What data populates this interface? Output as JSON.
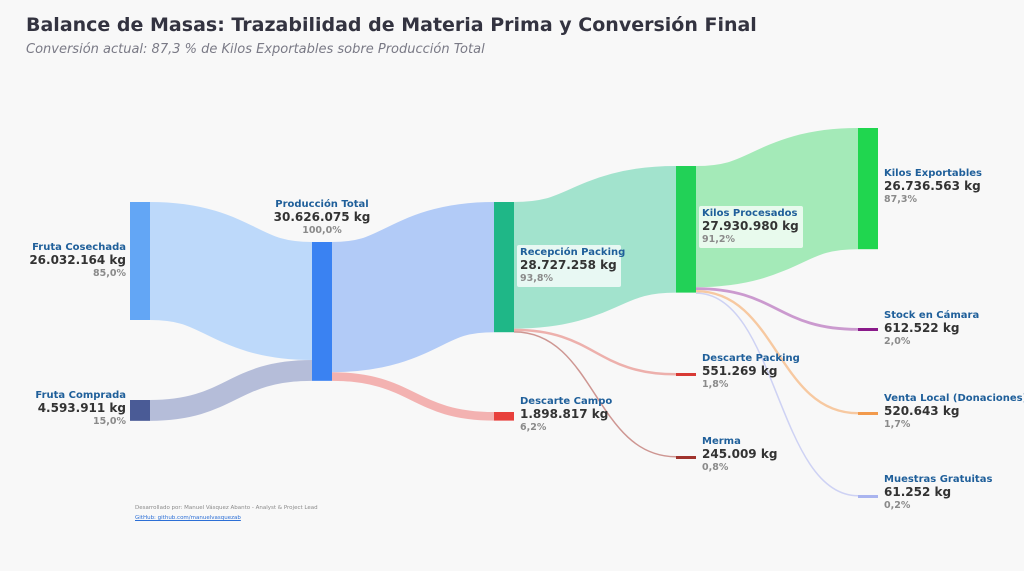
{
  "title": "Balance de Masas: Trazabilidad de Materia Prima y Conversión Final",
  "subtitle": "Conversión actual: 87,3 % de Kilos Exportables sobre Producción Total",
  "credits": {
    "line1": "Desarrollado por: Manuel Vásquez Abanto - Analyst & Project Lead",
    "line2": "GitHub: github.com/manuelvasquezab"
  },
  "chart_data": {
    "type": "sankey",
    "title": "Balance de Masas: Trazabilidad de Materia Prima y Conversión Final",
    "subtitle": "Conversión actual: 87,3 % de Kilos Exportables sobre Producción Total",
    "units": "kg",
    "nodes": [
      {
        "id": "fruta_cosechada",
        "name": "Fruta Cosechada",
        "value_label": "26.032.164 kg",
        "pct_label": "85,0%",
        "value": 26032164,
        "color": "#63a6f5"
      },
      {
        "id": "fruta_comprada",
        "name": "Fruta Comprada",
        "value_label": "4.593.911 kg",
        "pct_label": "15,0%",
        "value": 4593911,
        "color": "#4a5b96"
      },
      {
        "id": "produccion_total",
        "name": "Producción Total",
        "value_label": "30.626.075 kg",
        "pct_label": "100,0%",
        "value": 30626075,
        "color": "#3a82f2"
      },
      {
        "id": "recepcion_packing",
        "name": "Recepción Packing",
        "value_label": "28.727.258 kg",
        "pct_label": "93,8%",
        "value": 28727258,
        "color": "#1fb787"
      },
      {
        "id": "descarte_campo",
        "name": "Descarte Campo",
        "value_label": "1.898.817 kg",
        "pct_label": "6,2%",
        "value": 1898817,
        "color": "#e8403c"
      },
      {
        "id": "kilos_procesados",
        "name": "Kilos Procesados",
        "value_label": "27.930.980 kg",
        "pct_label": "91,2%",
        "value": 27930980,
        "color": "#22d157"
      },
      {
        "id": "descarte_packing",
        "name": "Descarte Packing",
        "value_label": "551.269 kg",
        "pct_label": "1,8%",
        "value": 551269,
        "color": "#d83a35"
      },
      {
        "id": "merma",
        "name": "Merma",
        "value_label": "245.009 kg",
        "pct_label": "0,8%",
        "value": 245009,
        "color": "#a0332d"
      },
      {
        "id": "kilos_exportables",
        "name": "Kilos Exportables",
        "value_label": "26.736.563 kg",
        "pct_label": "87,3%",
        "value": 26736563,
        "color": "#20d64f"
      },
      {
        "id": "stock_camara",
        "name": "Stock en Cámara",
        "value_label": "612.522 kg",
        "pct_label": "2,0%",
        "value": 612522,
        "color": "#8a1a8a"
      },
      {
        "id": "venta_local",
        "name": "Venta Local (Donaciones)",
        "value_label": "520.643 kg",
        "pct_label": "1,7%",
        "value": 520643,
        "color": "#f29a4c"
      },
      {
        "id": "muestras_gratuitas",
        "name": "Muestras Gratuitas",
        "value_label": "61.252 kg",
        "pct_label": "0,2%",
        "value": 61252,
        "color": "#a9b4ef"
      }
    ],
    "links": [
      {
        "source": "fruta_cosechada",
        "target": "produccion_total",
        "value": 26032164,
        "color": "#b3d3fa"
      },
      {
        "source": "fruta_comprada",
        "target": "produccion_total",
        "value": 4593911,
        "color": "#a9b3d3"
      },
      {
        "source": "produccion_total",
        "target": "recepcion_packing",
        "value": 28727258,
        "color": "#a6c3f7"
      },
      {
        "source": "produccion_total",
        "target": "descarte_campo",
        "value": 1898817,
        "color": "#f2a6a4"
      },
      {
        "source": "recepcion_packing",
        "target": "kilos_procesados",
        "value": 27930980,
        "color": "#93dfc5"
      },
      {
        "source": "recepcion_packing",
        "target": "descarte_packing",
        "value": 551269,
        "color": "#eba7a3"
      },
      {
        "source": "recepcion_packing",
        "target": "merma",
        "value": 245009,
        "color": "#c98b86"
      },
      {
        "source": "kilos_procesados",
        "target": "kilos_exportables",
        "value": 26736563,
        "color": "#95e8ad"
      },
      {
        "source": "kilos_procesados",
        "target": "stock_camara",
        "value": 612522,
        "color": "#c58fca"
      },
      {
        "source": "kilos_procesados",
        "target": "venta_local",
        "value": 520643,
        "color": "#f6c397"
      },
      {
        "source": "kilos_procesados",
        "target": "muestras_gratuitas",
        "value": 61252,
        "color": "#c9cdf3"
      }
    ]
  }
}
